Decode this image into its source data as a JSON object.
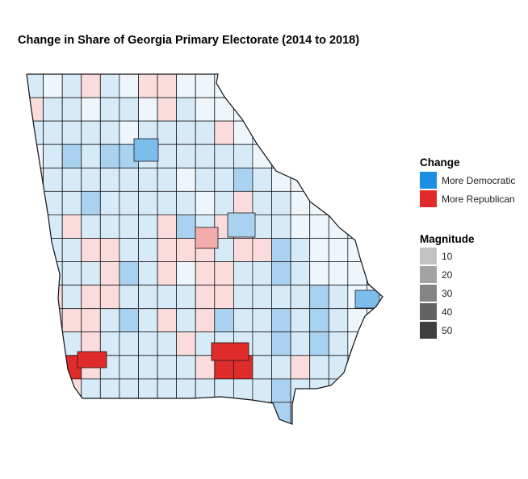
{
  "title": "Change in Share of Georgia Primary Electorate (2014 to 2018)",
  "legend": {
    "change": {
      "title": "Change",
      "items": [
        {
          "label": "More Democratic",
          "color": "#1a8fe3"
        },
        {
          "label": "More Republican",
          "color": "#e32a2a"
        }
      ]
    },
    "magnitude": {
      "title": "Magnitude",
      "items": [
        {
          "label": "10",
          "color": "#c2c2c2"
        },
        {
          "label": "20",
          "color": "#a3a3a3"
        },
        {
          "label": "30",
          "color": "#848484"
        },
        {
          "label": "40",
          "color": "#636363"
        },
        {
          "label": "50",
          "color": "#3f3f3f"
        }
      ]
    }
  },
  "colors": {
    "dem_light": "#d6eaf8",
    "dem_mid": "#a9d2f1",
    "dem_strong": "#7cbdeb",
    "rep_light": "#fbdcdc",
    "rep_mid": "#f2acac",
    "rep_strong": "#e02b2b",
    "neutral": "#eef6fc",
    "border": "#1a1a1a"
  }
}
